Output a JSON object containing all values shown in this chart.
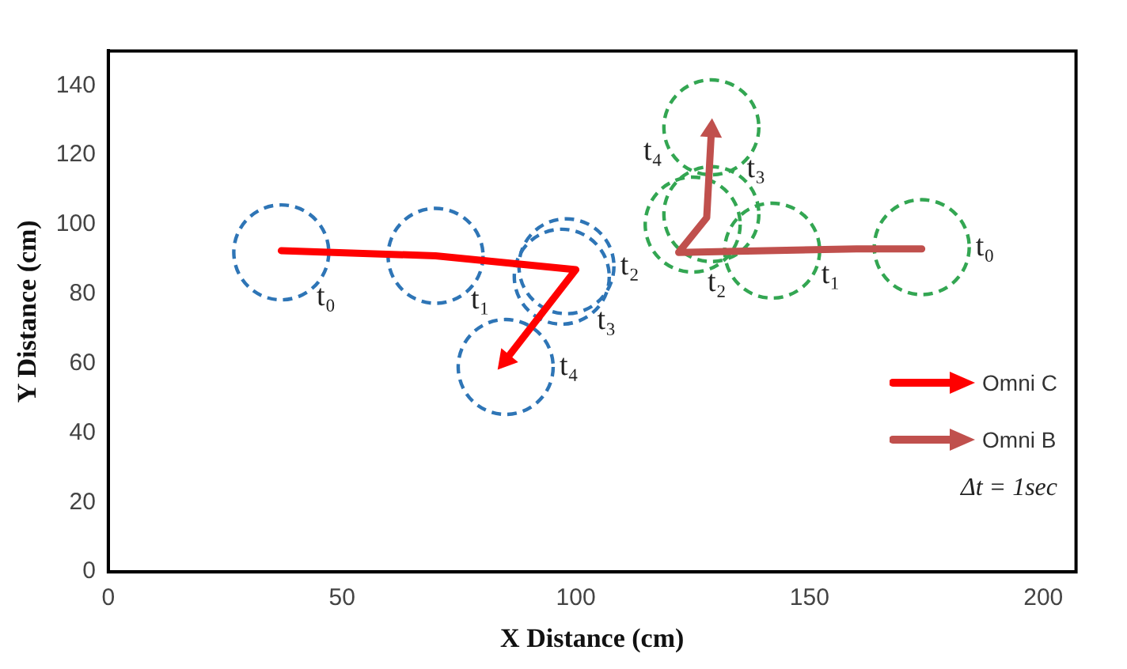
{
  "chart_data": {
    "type": "line",
    "xlabel": "X Distance (cm)",
    "ylabel": "Y Distance (cm)",
    "xlim": [
      0,
      207
    ],
    "xticks": [
      0,
      50,
      100,
      150,
      200
    ],
    "ylim": [
      0,
      150
    ],
    "yticks": [
      0,
      20,
      40,
      60,
      80,
      100,
      120,
      140
    ],
    "grid": false,
    "legend": "bottom right",
    "series": [
      {
        "name": "Omni C",
        "color": "#ff0000",
        "x": [
          37,
          70,
          100,
          85
        ],
        "values": [
          92.5,
          91,
          87,
          61
        ]
      },
      {
        "name": "Omni B",
        "color": "#c0504d",
        "x": [
          174,
          160,
          122,
          128,
          129
        ],
        "values": [
          93,
          93,
          92,
          102,
          127
        ]
      },
      {
        "type": "scatter",
        "marker": "circle",
        "line_style": "dashed",
        "color": "#2e75b6",
        "x": [
          37,
          70,
          98,
          97,
          85
        ],
        "values": [
          92,
          91,
          88,
          85,
          59
        ],
        "value_labels": [
          "t₀",
          "t₁",
          "t₂",
          "t₃",
          "t₄"
        ]
      },
      {
        "type": "scatter",
        "marker": "circle",
        "line_style": "dashed",
        "color": "#33a652",
        "x": [
          174,
          142,
          125,
          129,
          129
        ],
        "values": [
          93.5,
          92.5,
          100,
          103,
          128
        ],
        "value_labels": [
          "t₀",
          "t₁",
          "t₂",
          "t₃",
          "t₄"
        ]
      }
    ],
    "annotations": [
      "Δt = 1sec"
    ]
  }
}
